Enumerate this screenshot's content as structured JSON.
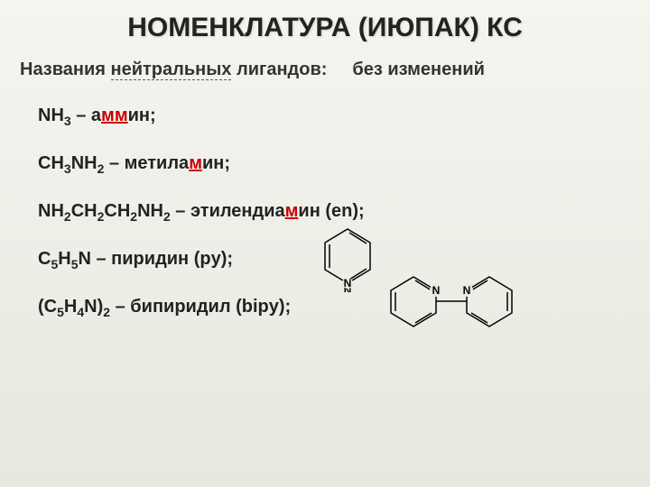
{
  "title": "НОМЕНКЛАТУРА (ИЮПАК) КС",
  "subtitle": {
    "prefix": "Названия ",
    "underlined": "нейтральных",
    "suffix": " лигандов:",
    "right": "без изменений"
  },
  "items": {
    "ammine": {
      "formula_html": "NH<span class='sub'>3</span> – а",
      "stress": "мм",
      "tail": "ин;"
    },
    "methylamine": {
      "formula_html": "CH<span class='sub'>3</span>NH<span class='sub'>2</span> – метила",
      "stress": "м",
      "tail": "ин;"
    },
    "ethylenediamine": {
      "formula_html": "NH<span class='sub'>2</span>CH<span class='sub'>2</span>CH<span class='sub'>2</span>NH<span class='sub'>2</span> – этилендиа",
      "stress": "м",
      "tail": "ин (en);"
    },
    "pyridine": {
      "formula_html": "C<span class='sub'>5</span>H<span class='sub'>5</span>N – пиридин (py);",
      "stress": "",
      "tail": ""
    },
    "bipyridine": {
      "formula_html": "(C<span class='sub'>5</span>H<span class='sub'>4</span>N)<span class='sub'>2</span> – бипиридил (bipy);",
      "stress": "",
      "tail": ""
    }
  },
  "colors": {
    "bg_top": "#f5f5f0",
    "bg_bottom": "#e8e8e0",
    "text": "#222222",
    "stress": "#cc0000",
    "struct_line": "#000000"
  }
}
